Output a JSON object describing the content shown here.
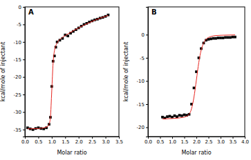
{
  "chart_data": [
    {
      "type": "scatter",
      "title": "A",
      "x_label": "Molar ratio",
      "y_label": "kcal/mole of injectant",
      "xlim": [
        0,
        3.5
      ],
      "ylim": [
        -37,
        0
      ],
      "xticks": [
        {
          "value": 0,
          "label": "0.0"
        },
        0.5,
        {
          "value": 1,
          "label": "1.0"
        },
        1.5,
        {
          "value": 2,
          "label": "2.0"
        },
        2.5,
        {
          "value": 3,
          "label": "3.0"
        },
        3.5
      ],
      "yticks": [
        -35,
        -30,
        -25,
        -20,
        -15,
        -10,
        -5,
        0
      ],
      "series": [
        {
          "type": "scatter",
          "color": "#000000",
          "marker": "square",
          "x": [
            0.1,
            0.2,
            0.3,
            0.4,
            0.5,
            0.6,
            0.7,
            0.8,
            0.9,
            0.95,
            1.0,
            1.05,
            1.1,
            1.15,
            1.2,
            1.3,
            1.4,
            1.5,
            1.6,
            1.7,
            1.8,
            1.9,
            2.0,
            2.1,
            2.2,
            2.3,
            2.4,
            2.5,
            2.6,
            2.7,
            2.8,
            2.9,
            3.0,
            3.1
          ],
          "values": [
            -34.5,
            -34.8,
            -35,
            -34.7,
            -34.5,
            -34.7,
            -34.8,
            -34.5,
            -33.5,
            -31.5,
            -22.7,
            -15.5,
            -14,
            -11.5,
            -10,
            -9.5,
            -9,
            -8,
            -8.3,
            -7.5,
            -7,
            -6.5,
            -6,
            -5.5,
            -5,
            -4.7,
            -4.3,
            -4,
            -3.7,
            -3.5,
            -3.2,
            -3,
            -2.7,
            -2.3
          ]
        },
        {
          "type": "line",
          "color": "#e8251f",
          "line_style": "solid",
          "x": [
            0.1,
            0.5,
            0.8,
            0.9,
            0.95,
            1.0,
            1.05,
            1.1,
            1.2,
            1.4,
            1.6,
            1.8,
            2.0,
            2.2,
            2.4,
            2.6,
            2.8,
            3.0,
            3.1
          ],
          "values": [
            -34.8,
            -34.7,
            -34.3,
            -33.5,
            -31.5,
            -24,
            -16,
            -12.5,
            -10.3,
            -8.7,
            -7.7,
            -6.8,
            -6,
            -5.2,
            -4.5,
            -3.8,
            -3.2,
            -2.7,
            -2.4
          ]
        }
      ]
    },
    {
      "type": "scatter",
      "title": "B",
      "x_label": "Molar ratio",
      "y_label": "kcal/mole of injectant",
      "xlim": [
        0,
        4
      ],
      "ylim": [
        -22,
        6
      ],
      "xticks": [
        {
          "value": 0,
          "label": "0.0"
        },
        0.5,
        {
          "value": 1,
          "label": "1.0"
        },
        1.5,
        {
          "value": 2,
          "label": "2.0"
        },
        2.5,
        {
          "value": 3,
          "label": "3.0"
        },
        3.5,
        {
          "value": 4,
          "label": "4.0"
        }
      ],
      "yticks": [
        -20,
        -15,
        -10,
        -5,
        0
      ],
      "series": [
        {
          "type": "scatter",
          "color": "#000000",
          "marker": "square",
          "x": [
            0.6,
            0.7,
            0.8,
            0.9,
            1.0,
            1.1,
            1.2,
            1.3,
            1.4,
            1.5,
            1.6,
            1.7,
            1.8,
            1.9,
            2.0,
            2.1,
            2.2,
            2.3,
            2.4,
            2.5,
            2.6,
            2.7,
            2.8,
            2.9,
            3.0,
            3.1,
            3.2,
            3.3,
            3.4,
            3.5,
            3.6
          ],
          "values": [
            -17.8,
            -18,
            -17.7,
            -17.6,
            -17.8,
            -17.5,
            -17.7,
            -17.4,
            -17.5,
            -17.3,
            -17.4,
            -17.2,
            -15,
            -11.5,
            -8,
            -5,
            -3,
            -1.8,
            -1.2,
            -1,
            -0.9,
            -0.8,
            -0.8,
            -0.7,
            -0.7,
            -0.7,
            -0.6,
            -0.6,
            -0.6,
            -0.5,
            -0.5
          ]
        },
        {
          "type": "line",
          "color": "#e8251f",
          "line_style": "solid",
          "x": [
            0.6,
            1.0,
            1.4,
            1.6,
            1.7,
            1.8,
            1.9,
            2.0,
            2.1,
            2.2,
            2.3,
            2.4,
            2.6,
            2.8,
            3.2,
            3.6
          ],
          "values": [
            -18.2,
            -18.1,
            -17.9,
            -17.6,
            -17.2,
            -16,
            -13.5,
            -9.8,
            -6,
            -3.3,
            -1.8,
            -1,
            -0.4,
            -0.2,
            -0.1,
            -0.05
          ]
        }
      ]
    }
  ]
}
